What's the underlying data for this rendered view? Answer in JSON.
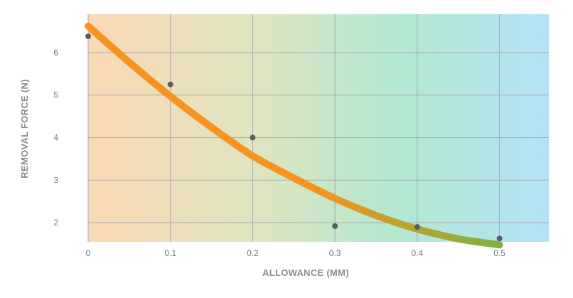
{
  "chart_data": {
    "type": "scatter",
    "xlabel": "ALLOWANCE (MM)",
    "ylabel": "REMOVAL FORCE (N)",
    "xlim": [
      0,
      0.56
    ],
    "ylim": [
      1.55,
      6.9
    ],
    "x_ticks": [
      0,
      0.1,
      0.2,
      0.3,
      0.4,
      0.5
    ],
    "x_tick_labels": [
      "0",
      "0.1",
      "0.2",
      "0.3",
      "0.4",
      "0.5"
    ],
    "y_ticks": [
      2,
      3,
      4,
      5,
      6
    ],
    "y_tick_labels": [
      "2",
      "3",
      "4",
      "5",
      "6"
    ],
    "grid": true,
    "points": {
      "x": [
        0,
        0.1,
        0.2,
        0.3,
        0.4,
        0.5
      ],
      "y": [
        6.38,
        5.25,
        4.0,
        1.92,
        1.9,
        1.63
      ],
      "color": "#5a5d63"
    },
    "trend": {
      "x": [
        0,
        0.05,
        0.1,
        0.15,
        0.2,
        0.25,
        0.3,
        0.35,
        0.4,
        0.45,
        0.5
      ],
      "y": [
        6.62,
        5.77,
        4.97,
        4.24,
        3.57,
        3.05,
        2.57,
        2.17,
        1.85,
        1.62,
        1.48
      ],
      "color_start": "#f7931e",
      "color_end": "#7cb342"
    },
    "background_gradient": [
      "#fbd9b5",
      "#dfe4c0",
      "#b3e8d0",
      "#b3e3f5"
    ]
  }
}
